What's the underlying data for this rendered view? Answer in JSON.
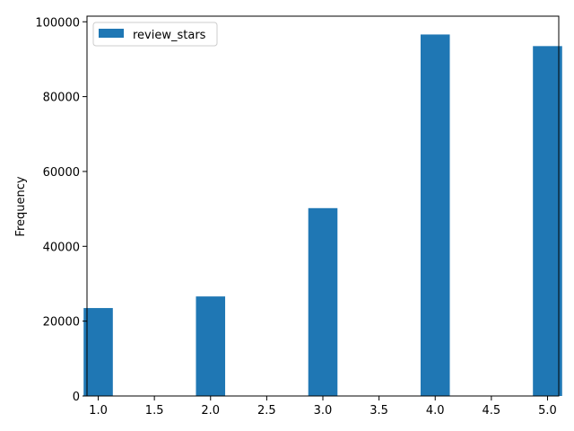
{
  "chart_data": {
    "type": "bar",
    "title": "",
    "xlabel": "",
    "ylabel": "Frequency",
    "xlim": [
      0.9,
      5.1
    ],
    "ylim": [
      0,
      101500
    ],
    "bin_width": 0.26,
    "grid": false,
    "legend_position": "top-left",
    "x_ticks": [
      "1.0",
      "1.5",
      "2.0",
      "2.5",
      "3.0",
      "3.5",
      "4.0",
      "4.5",
      "5.0"
    ],
    "y_ticks": [
      "0",
      "20000",
      "40000",
      "60000",
      "80000",
      "100000"
    ],
    "series": [
      {
        "name": "review_stars",
        "color": "#1f77b4",
        "bins": [
          {
            "x": 1.0,
            "value": 23500
          },
          {
            "x": 2.0,
            "value": 26600
          },
          {
            "x": 3.0,
            "value": 50200
          },
          {
            "x": 4.0,
            "value": 96600
          },
          {
            "x": 5.0,
            "value": 93500
          }
        ]
      }
    ]
  }
}
